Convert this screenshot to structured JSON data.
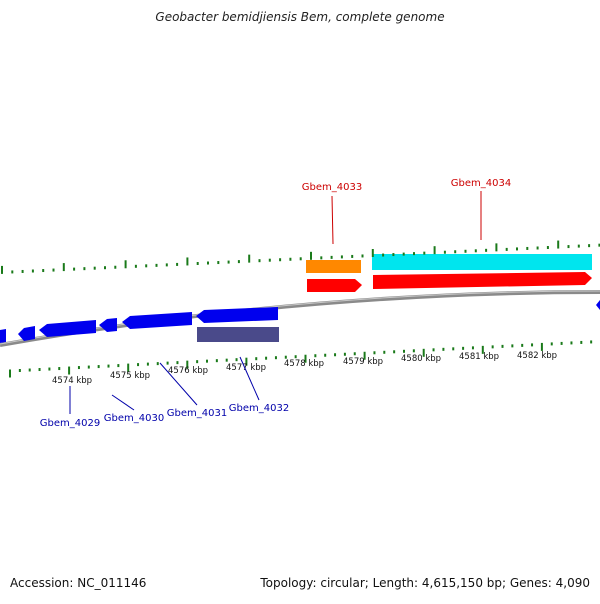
{
  "title": "Geobacter bemidjiensis Bem, complete genome",
  "footer": {
    "accession": "Accession: NC_011146",
    "summary": "Topology: circular; Length: 4,615,150 bp; Genes: 4,090"
  },
  "ticks": [
    "4574 kbp",
    "4575 kbp",
    "4576 kbp",
    "4577 kbp",
    "4578 kbp",
    "4579 kbp",
    "4580 kbp",
    "4581 kbp",
    "4582 kbp"
  ],
  "genes": [
    {
      "label": "Gbem_4029",
      "color": "#0000aa"
    },
    {
      "label": "Gbem_4030",
      "color": "#0000aa"
    },
    {
      "label": "Gbem_4031",
      "color": "#0000aa"
    },
    {
      "label": "Gbem_4032",
      "color": "#0000aa"
    },
    {
      "label": "Gbem_4033",
      "color": "#cc0000"
    },
    {
      "label": "Gbem_4034",
      "color": "#cc0000"
    }
  ],
  "colors": {
    "backbone": "#808080",
    "tick": "#1a7a1a",
    "forward_cds": "#ff0000",
    "reverse_cds": "#0000ee",
    "forward_feature_orange": "#ff8800",
    "forward_feature_cyan": "#00e5ee",
    "reverse_feature": "#4a4a8a"
  }
}
